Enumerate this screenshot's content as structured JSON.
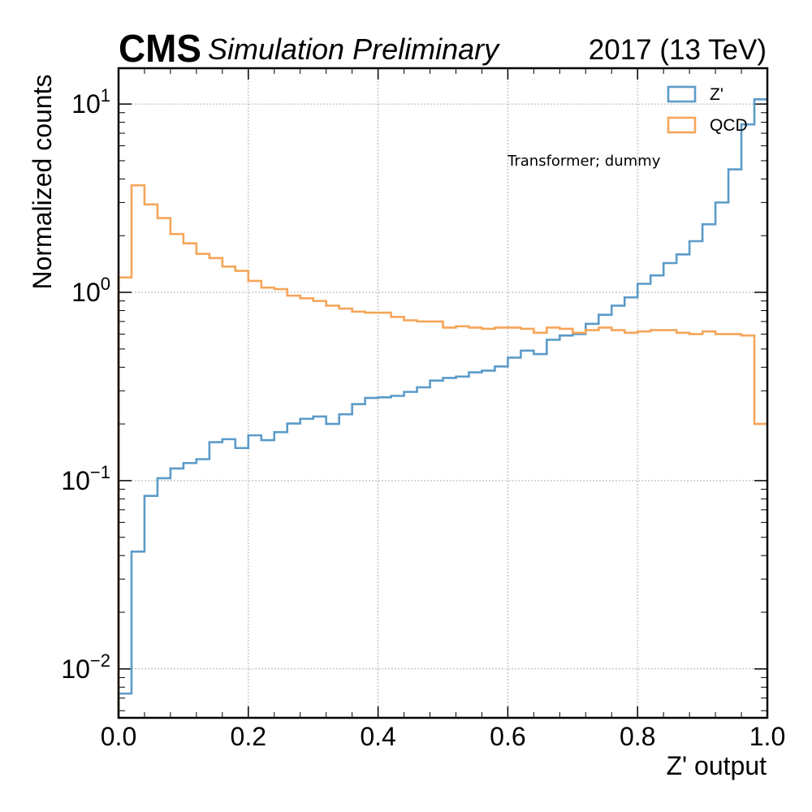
{
  "header": {
    "experiment": "CMS",
    "status": "Simulation Preliminary",
    "lumi": "2017 (13 TeV)"
  },
  "annotation": "Transformer; dummy",
  "chart_data": {
    "type": "histogram-step",
    "xlabel": "Z' output",
    "ylabel": "Normalized counts",
    "xlim": [
      0.0,
      1.0
    ],
    "ylim": [
      0.0055,
      15.5
    ],
    "yscale": "log",
    "grid": true,
    "legend_position": "top-right",
    "x_ticks": [
      "0.0",
      "0.2",
      "0.4",
      "0.6",
      "0.8",
      "1.0"
    ],
    "x_tick_values": [
      0.0,
      0.2,
      0.4,
      0.6,
      0.8,
      1.0
    ],
    "y_ticks": [
      {
        "value": 0.01,
        "base": "10",
        "exp": "−2"
      },
      {
        "value": 0.1,
        "base": "10",
        "exp": "−1"
      },
      {
        "value": 1,
        "base": "10",
        "exp": "0"
      },
      {
        "value": 10,
        "base": "10",
        "exp": "1"
      }
    ],
    "bin_edges": [
      0.0,
      0.02,
      0.04,
      0.06,
      0.08,
      0.1,
      0.12,
      0.14,
      0.16,
      0.18,
      0.2,
      0.22,
      0.24,
      0.26,
      0.28,
      0.3,
      0.32,
      0.34,
      0.36,
      0.38,
      0.4,
      0.42,
      0.44,
      0.46,
      0.48,
      0.5,
      0.52,
      0.54,
      0.56,
      0.58,
      0.6,
      0.62,
      0.64,
      0.66,
      0.68,
      0.7,
      0.72,
      0.74,
      0.76,
      0.78,
      0.8,
      0.82,
      0.84,
      0.86,
      0.88,
      0.9,
      0.92,
      0.94,
      0.96,
      0.98,
      1.0
    ],
    "series": [
      {
        "name": "Z'",
        "color": "#5b9bc8",
        "values": [
          0.0074,
          0.042,
          0.083,
          0.103,
          0.116,
          0.124,
          0.13,
          0.16,
          0.166,
          0.149,
          0.174,
          0.164,
          0.181,
          0.201,
          0.213,
          0.219,
          0.2,
          0.225,
          0.255,
          0.275,
          0.277,
          0.282,
          0.296,
          0.313,
          0.34,
          0.351,
          0.357,
          0.376,
          0.384,
          0.404,
          0.45,
          0.49,
          0.47,
          0.56,
          0.59,
          0.6,
          0.68,
          0.76,
          0.85,
          0.94,
          1.11,
          1.23,
          1.43,
          1.59,
          1.87,
          2.3,
          3.0,
          4.5,
          7.8,
          10.6
        ]
      },
      {
        "name": "QCD",
        "color": "#f5a55a",
        "values": [
          1.2,
          3.7,
          2.93,
          2.48,
          2.04,
          1.82,
          1.6,
          1.52,
          1.37,
          1.3,
          1.15,
          1.06,
          1.04,
          0.96,
          0.93,
          0.9,
          0.85,
          0.82,
          0.79,
          0.78,
          0.78,
          0.74,
          0.71,
          0.7,
          0.7,
          0.65,
          0.66,
          0.65,
          0.64,
          0.65,
          0.65,
          0.64,
          0.61,
          0.65,
          0.64,
          0.61,
          0.63,
          0.65,
          0.63,
          0.61,
          0.62,
          0.63,
          0.63,
          0.61,
          0.6,
          0.62,
          0.6,
          0.6,
          0.59,
          0.2
        ]
      }
    ]
  }
}
